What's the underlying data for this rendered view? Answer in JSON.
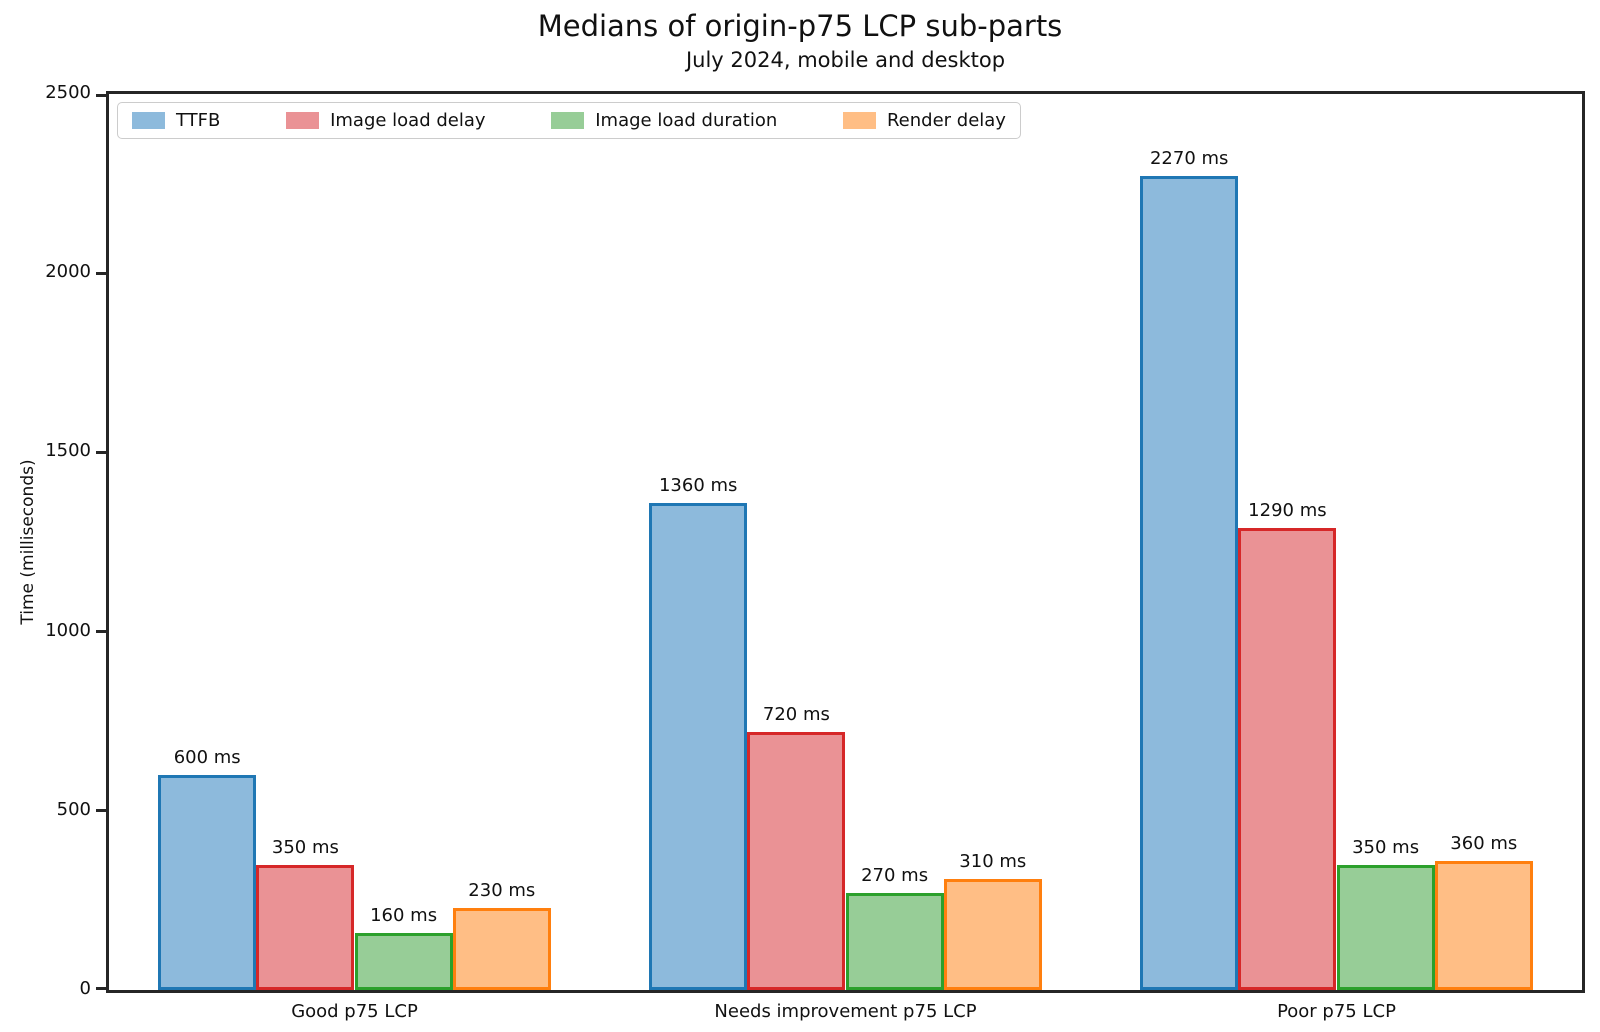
{
  "title": "Medians of origin-p75 LCP sub-parts",
  "subtitle": "July 2024, mobile and desktop",
  "chart_data": {
    "type": "bar",
    "title": "Medians of origin-p75 LCP sub-parts",
    "subtitle": "July 2024, mobile and desktop",
    "categories": [
      "Good p75 LCP",
      "Needs improvement p75 LCP",
      "Poor p75 LCP"
    ],
    "series": [
      {
        "name": "TTFB",
        "values": [
          600,
          1360,
          2270
        ],
        "labels": [
          "600 ms",
          "1360 ms",
          "2270 ms"
        ],
        "fill_color": "#8DBADC",
        "edge_color": "#1F77B4"
      },
      {
        "name": "Image load delay",
        "values": [
          350,
          720,
          1290
        ],
        "labels": [
          "350 ms",
          "720 ms",
          "1290 ms"
        ],
        "fill_color": "#EA9295",
        "edge_color": "#D62728"
      },
      {
        "name": "Image load duration",
        "values": [
          160,
          270,
          350
        ],
        "labels": [
          "160 ms",
          "270 ms",
          "350 ms"
        ],
        "fill_color": "#97CD97",
        "edge_color": "#2CA02C"
      },
      {
        "name": "Render delay",
        "values": [
          230,
          310,
          360
        ],
        "labels": [
          "230 ms",
          "310 ms",
          "360 ms"
        ],
        "fill_color": "#FFBE85",
        "edge_color": "#FF7F0E"
      }
    ],
    "xlabel": "",
    "ylabel": "Time (milliseconds)",
    "ylim": [
      0,
      2500
    ],
    "yticks": [
      0,
      500,
      1000,
      1500,
      2000,
      2500
    ],
    "ytick_labels": [
      "0",
      "500",
      "1000",
      "1500",
      "2000",
      "2500"
    ],
    "grid": false,
    "legend_position": "upper left",
    "value_label_suffix": " ms",
    "axis_color": "#262626",
    "text_color": "#111111"
  }
}
